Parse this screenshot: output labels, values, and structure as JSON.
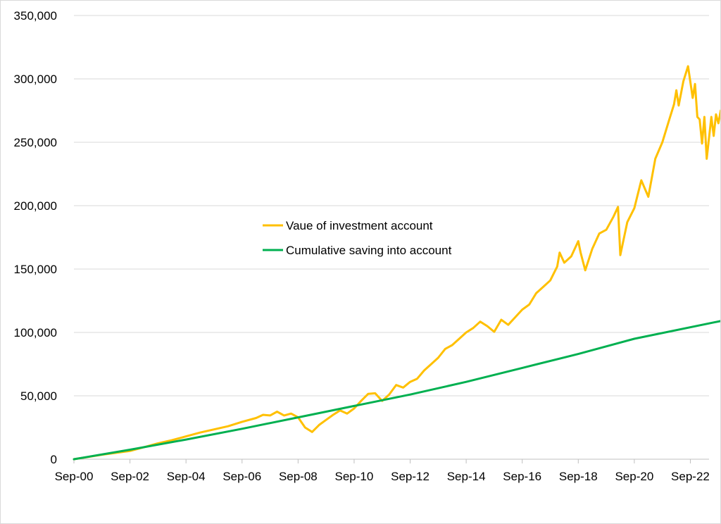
{
  "chart_data": {
    "type": "line",
    "title": "",
    "xlabel": "",
    "ylabel": "",
    "x_axis": {
      "type": "date",
      "min": "2000-09",
      "max": "2023-05",
      "tick_labels": [
        "Sep-00",
        "Sep-02",
        "Sep-04",
        "Sep-06",
        "Sep-08",
        "Sep-10",
        "Sep-12",
        "Sep-14",
        "Sep-16",
        "Sep-18",
        "Sep-20",
        "Sep-22"
      ]
    },
    "y_axis": {
      "min": 0,
      "max": 350000,
      "step": 50000,
      "tick_labels": [
        "0",
        "50,000",
        "100,000",
        "150,000",
        "200,000",
        "250,000",
        "300,000",
        "350,000"
      ]
    },
    "grid": true,
    "legend": {
      "position": "center"
    },
    "series": [
      {
        "name": "Vaue of investment account",
        "color": "#ffc000",
        "points": [
          [
            "2000-09",
            0
          ],
          [
            "2001-09",
            3500
          ],
          [
            "2002-09",
            6500
          ],
          [
            "2003-03",
            9500
          ],
          [
            "2003-09",
            12500
          ],
          [
            "2004-03",
            15000
          ],
          [
            "2004-09",
            18000
          ],
          [
            "2005-03",
            21000
          ],
          [
            "2005-09",
            23500
          ],
          [
            "2006-03",
            26000
          ],
          [
            "2006-09",
            29500
          ],
          [
            "2007-03",
            32500
          ],
          [
            "2007-06",
            35000
          ],
          [
            "2007-09",
            34500
          ],
          [
            "2007-12",
            37500
          ],
          [
            "2008-03",
            34500
          ],
          [
            "2008-06",
            36000
          ],
          [
            "2008-09",
            33000
          ],
          [
            "2008-12",
            25000
          ],
          [
            "2009-03",
            21500
          ],
          [
            "2009-06",
            27000
          ],
          [
            "2009-09",
            31000
          ],
          [
            "2009-12",
            35000
          ],
          [
            "2010-03",
            38500
          ],
          [
            "2010-06",
            36000
          ],
          [
            "2010-09",
            40000
          ],
          [
            "2010-12",
            46000
          ],
          [
            "2011-03",
            51500
          ],
          [
            "2011-06",
            52000
          ],
          [
            "2011-09",
            46000
          ],
          [
            "2011-12",
            51000
          ],
          [
            "2012-03",
            58500
          ],
          [
            "2012-06",
            56500
          ],
          [
            "2012-09",
            61000
          ],
          [
            "2012-12",
            63500
          ],
          [
            "2013-03",
            70000
          ],
          [
            "2013-06",
            75000
          ],
          [
            "2013-09",
            80000
          ],
          [
            "2013-12",
            87000
          ],
          [
            "2014-03",
            90000
          ],
          [
            "2014-06",
            95000
          ],
          [
            "2014-09",
            100000
          ],
          [
            "2014-12",
            103500
          ],
          [
            "2015-03",
            108500
          ],
          [
            "2015-06",
            105000
          ],
          [
            "2015-09",
            100500
          ],
          [
            "2015-12",
            110000
          ],
          [
            "2016-03",
            106000
          ],
          [
            "2016-06",
            112000
          ],
          [
            "2016-09",
            118000
          ],
          [
            "2016-12",
            122000
          ],
          [
            "2017-03",
            131000
          ],
          [
            "2017-06",
            136000
          ],
          [
            "2017-09",
            141000
          ],
          [
            "2017-12",
            152000
          ],
          [
            "2018-01",
            163000
          ],
          [
            "2018-03",
            155000
          ],
          [
            "2018-06",
            160000
          ],
          [
            "2018-09",
            172000
          ],
          [
            "2018-10",
            163000
          ],
          [
            "2018-12",
            149000
          ],
          [
            "2019-03",
            166000
          ],
          [
            "2019-06",
            178000
          ],
          [
            "2019-09",
            181000
          ],
          [
            "2019-12",
            191000
          ],
          [
            "2020-02",
            199000
          ],
          [
            "2020-03",
            161000
          ],
          [
            "2020-06",
            187000
          ],
          [
            "2020-09",
            198000
          ],
          [
            "2020-12",
            220000
          ],
          [
            "2021-03",
            207000
          ],
          [
            "2021-06",
            237000
          ],
          [
            "2021-09",
            250000
          ],
          [
            "2021-12",
            268000
          ],
          [
            "2022-02",
            280000
          ],
          [
            "2022-03",
            291000
          ],
          [
            "2022-04",
            279000
          ],
          [
            "2022-06",
            298000
          ],
          [
            "2022-08",
            310000
          ],
          [
            "2022-10",
            285000
          ],
          [
            "2022-11",
            296000
          ],
          [
            "2022-12",
            270000
          ],
          [
            "2023-01",
            268000
          ],
          [
            "2023-02",
            249000
          ],
          [
            "2023-03",
            270000
          ],
          [
            "2023-04",
            237000
          ],
          [
            "2023-06",
            270000
          ],
          [
            "2023-07",
            255000
          ],
          [
            "2023-08",
            272000
          ],
          [
            "2023-09",
            265000
          ],
          [
            "2023-10",
            275000
          ]
        ]
      },
      {
        "name": "Cumulative saving into account",
        "color": "#00b050",
        "points": [
          [
            "2000-09",
            0
          ],
          [
            "2002-09",
            7500
          ],
          [
            "2004-09",
            15500
          ],
          [
            "2006-09",
            24000
          ],
          [
            "2008-09",
            33000
          ],
          [
            "2010-09",
            42000
          ],
          [
            "2012-09",
            51000
          ],
          [
            "2014-09",
            61000
          ],
          [
            "2016-09",
            72000
          ],
          [
            "2018-09",
            83000
          ],
          [
            "2020-09",
            95000
          ],
          [
            "2023-10",
            109000
          ]
        ]
      }
    ]
  }
}
